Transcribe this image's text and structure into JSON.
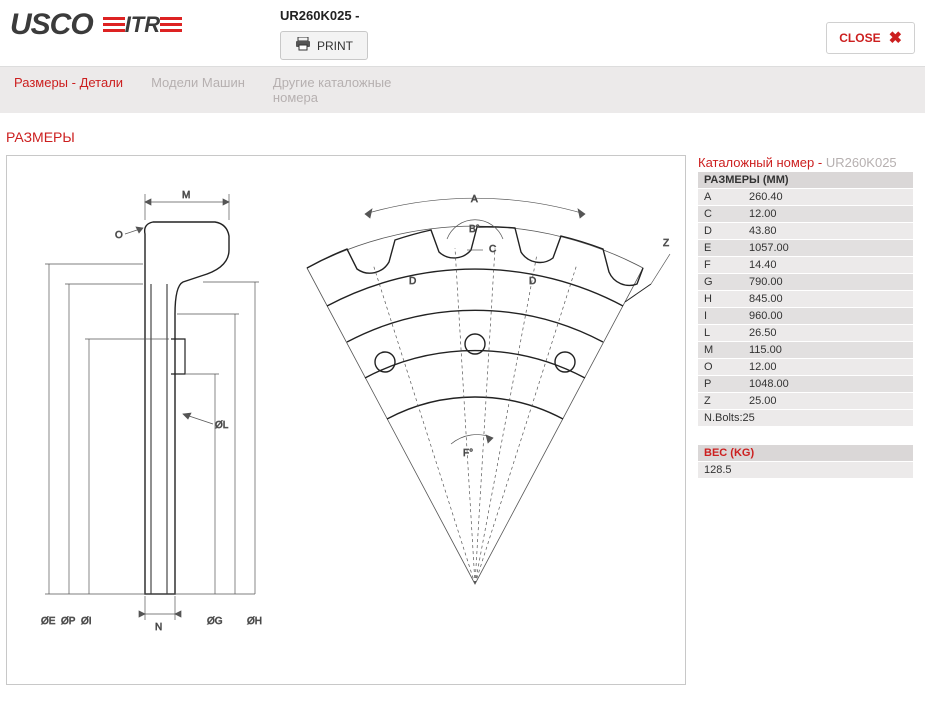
{
  "header": {
    "logo_usco": "USCO",
    "logo_itr": "ITR",
    "part_code": "UR260K025 -",
    "print_label": "PRINT",
    "close_label": "CLOSE"
  },
  "tabs": {
    "active": "Размеры - Детали",
    "t2": "Модели Машин",
    "t3": "Другие каталожные номера"
  },
  "section": {
    "title": "РАЗМЕРЫ"
  },
  "catalog": {
    "label": "Каталожный номер - ",
    "code": "UR260K025"
  },
  "spec": {
    "header": "РАЗМЕРЫ (ММ)",
    "rows": [
      {
        "k": "A",
        "v": "260.40"
      },
      {
        "k": "C",
        "v": "12.00"
      },
      {
        "k": "D",
        "v": "43.80"
      },
      {
        "k": "E",
        "v": "1057.00"
      },
      {
        "k": "F",
        "v": "14.40"
      },
      {
        "k": "G",
        "v": "790.00"
      },
      {
        "k": "H",
        "v": "845.00"
      },
      {
        "k": "I",
        "v": "960.00"
      },
      {
        "k": "L",
        "v": "26.50"
      },
      {
        "k": "M",
        "v": "115.00"
      },
      {
        "k": "O",
        "v": "12.00"
      },
      {
        "k": "P",
        "v": "1048.00"
      },
      {
        "k": "Z",
        "v": "25.00"
      }
    ],
    "footer": "N.Bolts:25"
  },
  "weight": {
    "header": "ВЕС (KG)",
    "value": "128.5"
  },
  "diagram": {
    "labels": {
      "M": "M",
      "O": "O",
      "N": "N",
      "phiE": "ØE",
      "phiP": "ØP",
      "phiI": "ØI",
      "phiL": "ØL",
      "phiG": "ØG",
      "phiH": "ØH",
      "A": "A",
      "B": "B°",
      "C": "C",
      "D1": "D",
      "D2": "D",
      "Z": "Z",
      "F": "F°"
    },
    "colors": {
      "stroke": "#222222",
      "thin": "#555555",
      "bg": "#ffffff"
    },
    "line_widths": {
      "outline": 1.4,
      "dim": 0.7
    }
  }
}
